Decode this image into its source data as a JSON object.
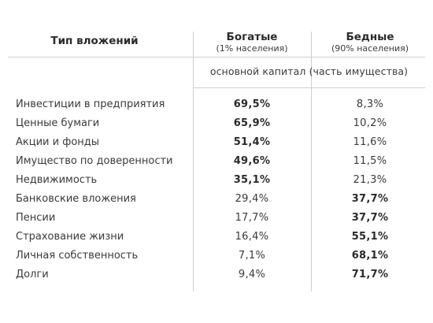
{
  "header": {
    "type_label": "Тип вложений",
    "rich_title": "Богатые",
    "rich_sub": "(1% населения)",
    "poor_title": "Бедные",
    "poor_sub": "(90% населения)"
  },
  "caption": "основной капитал  (часть имущества)",
  "rows": [
    {
      "label": "Инвестиции в предприятия",
      "rich": "69,5%",
      "poor": "8,3%",
      "bold": "rich"
    },
    {
      "label": "Ценные бумаги",
      "rich": "65,9%",
      "poor": "10,2%",
      "bold": "rich"
    },
    {
      "label": "Акции и фонды",
      "rich": "51,4%",
      "poor": "11,6%",
      "bold": "rich"
    },
    {
      "label": "Имущество по доверенности",
      "rich": "49,6%",
      "poor": "11,5%",
      "bold": "rich"
    },
    {
      "label": "Недвижимость",
      "rich": "35,1%",
      "poor": "21,3%",
      "bold": "rich"
    },
    {
      "label": "Банковские вложения",
      "rich": "29,4%",
      "poor": "37,7%",
      "bold": "poor"
    },
    {
      "label": "Пенсии",
      "rich": "17,7%",
      "poor": "37,7%",
      "bold": "poor"
    },
    {
      "label": "Страхование жизни",
      "rich": "16,4%",
      "poor": "55,1%",
      "bold": "poor"
    },
    {
      "label": "Личная собственность",
      "rich": "7,1%",
      "poor": "68,1%",
      "bold": "poor"
    },
    {
      "label": "Долги",
      "rich": "9,4%",
      "poor": "71,7%",
      "bold": "poor"
    }
  ]
}
